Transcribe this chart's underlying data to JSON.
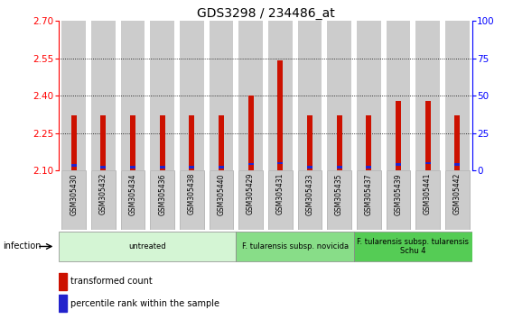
{
  "title": "GDS3298 / 234486_at",
  "samples": [
    "GSM305430",
    "GSM305432",
    "GSM305434",
    "GSM305436",
    "GSM305438",
    "GSM305440",
    "GSM305429",
    "GSM305431",
    "GSM305433",
    "GSM305435",
    "GSM305437",
    "GSM305439",
    "GSM305441",
    "GSM305442"
  ],
  "red_values": [
    2.32,
    2.32,
    2.32,
    2.32,
    2.32,
    2.32,
    2.4,
    2.54,
    2.32,
    2.32,
    2.32,
    2.38,
    2.38,
    2.32
  ],
  "blue_values": [
    2.115,
    2.108,
    2.108,
    2.108,
    2.108,
    2.108,
    2.122,
    2.125,
    2.108,
    2.108,
    2.108,
    2.12,
    2.125,
    2.12
  ],
  "ylim_left": [
    2.1,
    2.7
  ],
  "ylim_right": [
    0,
    100
  ],
  "yticks_left": [
    2.1,
    2.25,
    2.4,
    2.55,
    2.7
  ],
  "yticks_right": [
    0,
    25,
    50,
    75,
    100
  ],
  "gridlines": [
    2.25,
    2.4,
    2.55
  ],
  "red_color": "#cc1100",
  "blue_color": "#2222cc",
  "bar_bg_color": "#cccccc",
  "groups": [
    {
      "label": "untreated",
      "start": 0,
      "end": 6,
      "color": "#d4f5d4"
    },
    {
      "label": "F. tularensis subsp. novicida",
      "start": 6,
      "end": 10,
      "color": "#88dd88"
    },
    {
      "label": "F. tularensis subsp. tularensis\nSchu 4",
      "start": 10,
      "end": 14,
      "color": "#55cc55"
    }
  ],
  "infection_label": "infection",
  "legend_red": "transformed count",
  "legend_blue": "percentile rank within the sample",
  "title_fontsize": 10,
  "tick_fontsize": 7.5,
  "label_fontsize": 7
}
